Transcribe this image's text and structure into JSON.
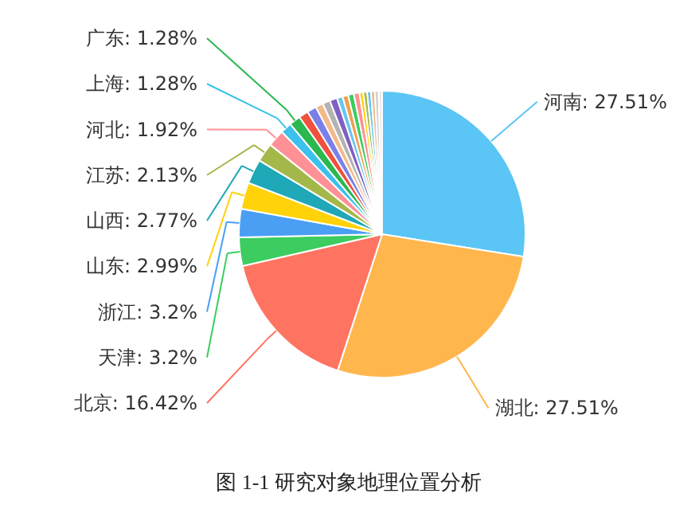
{
  "chart_data": {
    "type": "pie",
    "title": "图 1-1 研究对象地理位置分析",
    "categories": [
      "河南",
      "湖北",
      "北京",
      "天津",
      "浙江",
      "山东",
      "山西",
      "江苏",
      "河北",
      "上海",
      "广东",
      null,
      null,
      null,
      null,
      null,
      null,
      null,
      null,
      null,
      null,
      null,
      null,
      null,
      null,
      null
    ],
    "values": [
      27.51,
      27.51,
      16.42,
      3.2,
      3.2,
      2.99,
      2.77,
      2.13,
      1.92,
      1.28,
      1.28,
      1.07,
      1.07,
      0.85,
      0.85,
      0.85,
      0.64,
      0.64,
      0.64,
      0.64,
      0.43,
      0.43,
      0.43,
      0.43,
      0.43,
      0.39
    ],
    "value_labels": [
      "27.51%",
      "27.51%",
      "16.42%",
      "3.2%",
      "3.2%",
      "2.99%",
      "2.77%",
      "2.13%",
      "1.92%",
      "1.28%",
      "1.28%",
      null,
      null,
      null,
      null,
      null,
      null,
      null,
      null,
      null,
      null,
      null,
      null,
      null,
      null,
      null
    ],
    "colors": [
      "#5bc5f5",
      "#ffb64d",
      "#ff7461",
      "#3ccc5f",
      "#4a9ff5",
      "#ffd20a",
      "#1fa8b8",
      "#a4b84a",
      "#ff9095",
      "#3cc0ec",
      "#2ab84f",
      "#f0503c",
      "#7b7fe8",
      "#f4b98a",
      "#b3b3b3",
      "#8060c0",
      "#66c6f0",
      "#f0a050",
      "#3ccc5f",
      "#ff9095",
      "#ffd20a",
      "#a4b84a",
      "#5bc5f5",
      "#f4b98a",
      "#d0d0d0",
      "#e8e8e8"
    ]
  }
}
